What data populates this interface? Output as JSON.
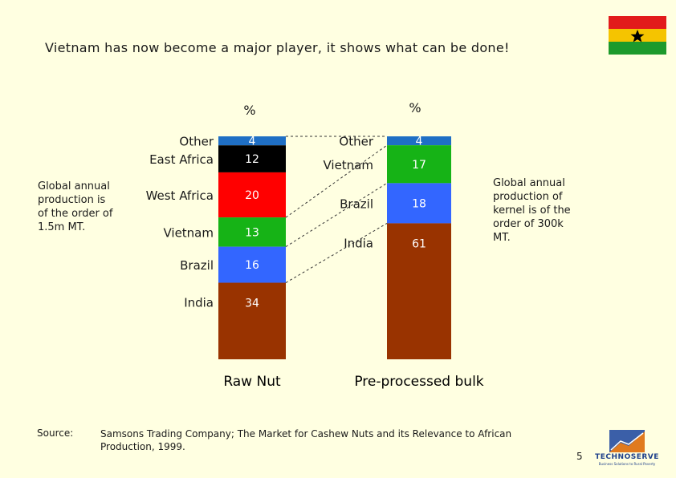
{
  "page": {
    "title": "Vietnam has now become a major player, it shows what can be done!",
    "note_left": "Global annual\nproduction is\nof the order of\n1.5m MT.",
    "note_right": "Global annual\nproduction of\nkernel is of the\norder of 300k\nMT.",
    "source_label": "Source:",
    "source_text": "Samsons Trading Company; The Market for Cashew Nuts and its Relevance to African\nProduction, 1999.",
    "page_number": "5",
    "logo": {
      "wordmark": "TECHNOSERVE",
      "tagline": "Business Solutions to Rural Poverty"
    }
  },
  "chart_data": {
    "type": "stacked-bar",
    "unit": "%",
    "bars": [
      {
        "name": "Raw Nut",
        "unit_label": "%",
        "segments": [
          {
            "label": "Other",
            "value": 4,
            "color": "#1f6fc5"
          },
          {
            "label": "East Africa",
            "value": 12,
            "color": "#000000"
          },
          {
            "label": "West Africa",
            "value": 20,
            "color": "#ff0000"
          },
          {
            "label": "Vietnam",
            "value": 13,
            "color": "#16b316"
          },
          {
            "label": "Brazil",
            "value": 16,
            "color": "#3366ff"
          },
          {
            "label": "India",
            "value": 34,
            "color": "#993300"
          }
        ]
      },
      {
        "name": "Pre-processed bulk",
        "unit_label": "%",
        "segments": [
          {
            "label": "Other",
            "value": 4,
            "color": "#1f6fc5"
          },
          {
            "label": "Vietnam",
            "value": 17,
            "color": "#16b316"
          },
          {
            "label": "Brazil",
            "value": 18,
            "color": "#3366ff"
          },
          {
            "label": "India",
            "value": 61,
            "color": "#993300"
          }
        ]
      }
    ]
  }
}
